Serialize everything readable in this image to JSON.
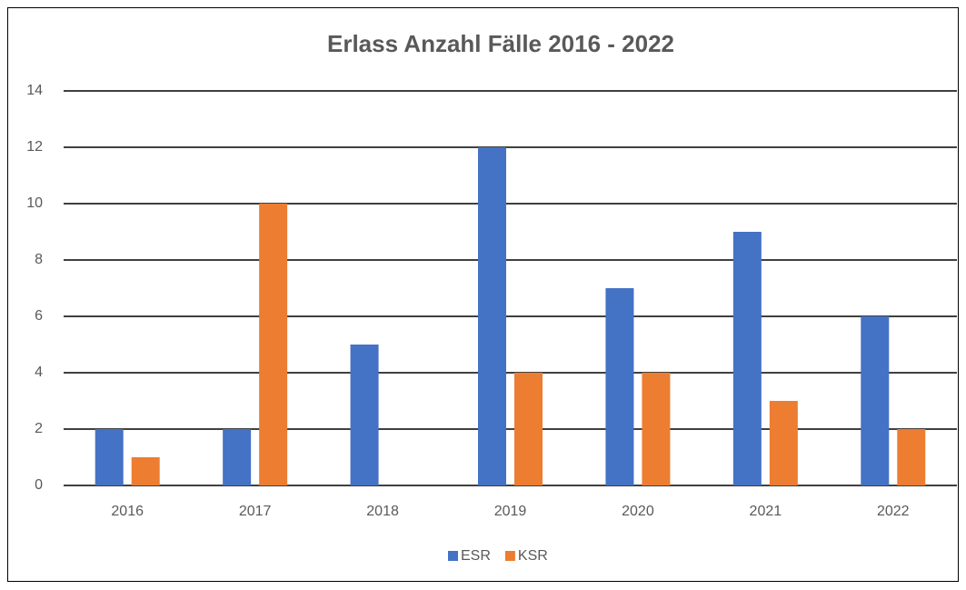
{
  "chart_data": {
    "type": "bar",
    "title": "Erlass Anzahl Fälle 2016 - 2022",
    "categories": [
      "2016",
      "2017",
      "2018",
      "2019",
      "2020",
      "2021",
      "2022"
    ],
    "series": [
      {
        "name": "ESR",
        "color": "#4472c4",
        "values": [
          2,
          2,
          5,
          12,
          7,
          9,
          6
        ]
      },
      {
        "name": "KSR",
        "color": "#ed7d31",
        "values": [
          1,
          10,
          0,
          4,
          4,
          3,
          2
        ]
      }
    ],
    "ylim": [
      0,
      14
    ],
    "yticks": [
      0,
      2,
      4,
      6,
      8,
      10,
      12,
      14
    ],
    "grid": true,
    "legend": "bottom"
  }
}
